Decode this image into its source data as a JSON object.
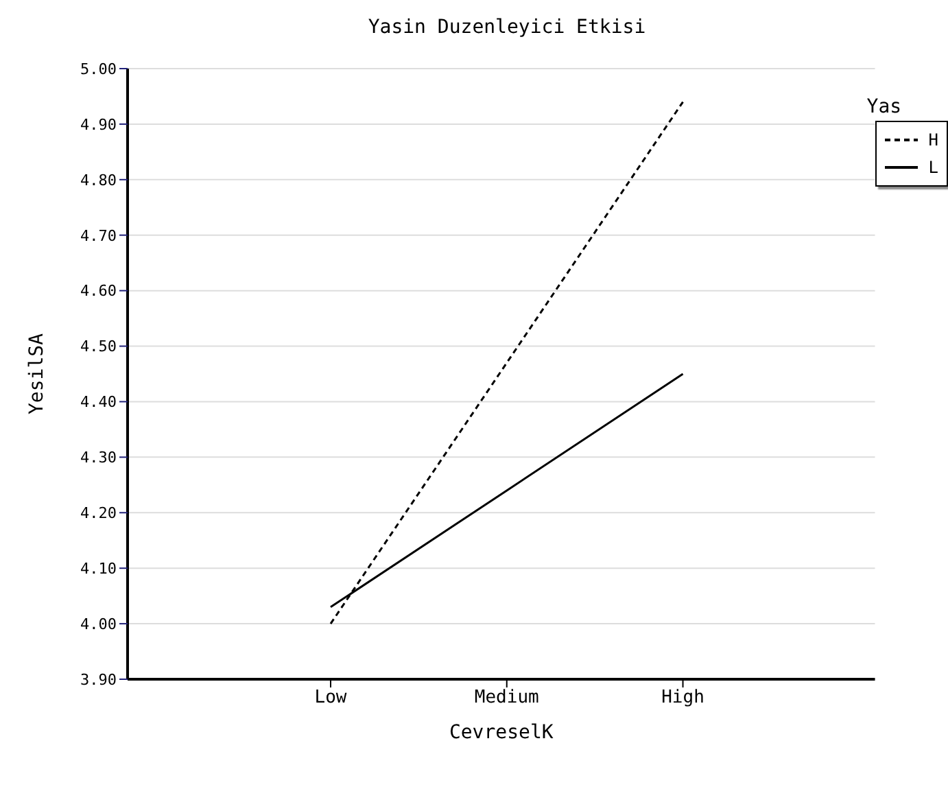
{
  "chart_data": {
    "type": "line",
    "title": "Yasin Duzenleyici Etkisi",
    "xlabel": "CevreselK",
    "ylabel": "YesilSA",
    "legend_title": "Yas",
    "categories": [
      "Low",
      "Medium",
      "High"
    ],
    "series": [
      {
        "name": "H",
        "color": "#000000",
        "line_style": "dashed",
        "values": [
          4.0,
          4.47,
          4.94
        ]
      },
      {
        "name": "L",
        "color": "#000000",
        "line_style": "solid",
        "values": [
          4.03,
          4.24,
          4.45
        ]
      }
    ],
    "ylim": [
      3.9,
      5.0
    ],
    "yticks": [
      {
        "value": 3.9,
        "label": "3.90"
      },
      {
        "value": 4.0,
        "label": "4.00"
      },
      {
        "value": 4.1,
        "label": "4.10"
      },
      {
        "value": 4.2,
        "label": "4.20"
      },
      {
        "value": 4.3,
        "label": "4.30"
      },
      {
        "value": 4.4,
        "label": "4.40"
      },
      {
        "value": 4.5,
        "label": "4.50"
      },
      {
        "value": 4.6,
        "label": "4.60"
      },
      {
        "value": 4.7,
        "label": "4.70"
      },
      {
        "value": 4.8,
        "label": "4.80"
      },
      {
        "value": 4.9,
        "label": "4.90"
      },
      {
        "value": 5.0,
        "label": "5.00"
      }
    ],
    "grid": "y",
    "legend": "top right",
    "marker": "none"
  }
}
